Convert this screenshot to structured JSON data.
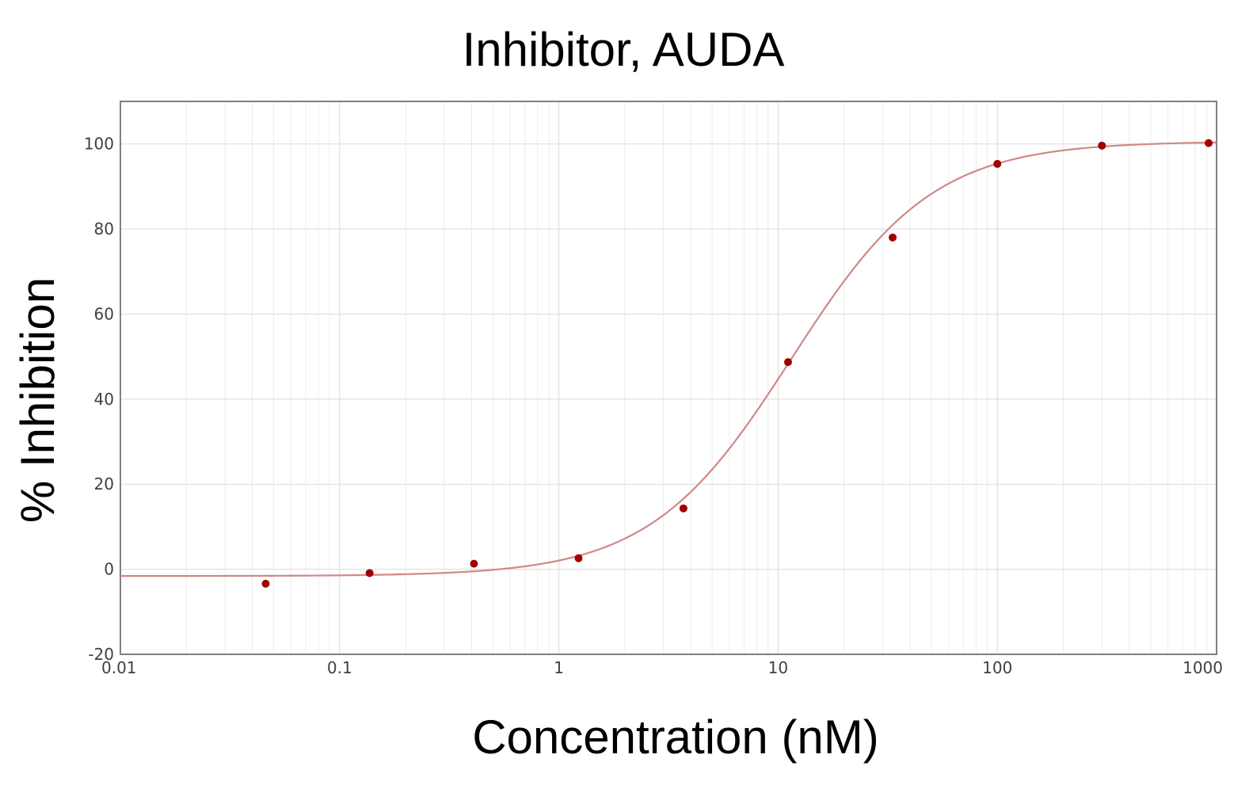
{
  "chart_data": {
    "type": "scatter",
    "title": "Inhibitor, AUDA",
    "xlabel": "Concentration (nM)",
    "ylabel": "% Inhibition",
    "x_scale": "log",
    "xlim": [
      0.01,
      1000
    ],
    "ylim": [
      -20,
      110
    ],
    "x_ticks": [
      "0.01",
      "0.1",
      "1",
      "10",
      "100",
      "1000"
    ],
    "y_ticks": [
      "-20",
      "0",
      "20",
      "40",
      "60",
      "80",
      "100"
    ],
    "grid": true,
    "colors": {
      "points": "#a00000",
      "curve": "#d08888",
      "grid": "#e0e0e0",
      "axis": "#808080"
    },
    "series": [
      {
        "type": "scatter",
        "x": [
          0.046,
          0.137,
          0.41,
          1.23,
          3.7,
          11.1,
          33.3,
          100,
          300,
          920
        ],
        "y": [
          -3.4,
          -0.9,
          1.3,
          2.6,
          14.3,
          48.7,
          78,
          95.3,
          99.6,
          100.2
        ]
      },
      {
        "type": "line",
        "fit": "four-parameter logistic",
        "bottom": -1.6,
        "top": 100.6,
        "ic50": 11.5,
        "hill": 1.35
      }
    ]
  }
}
